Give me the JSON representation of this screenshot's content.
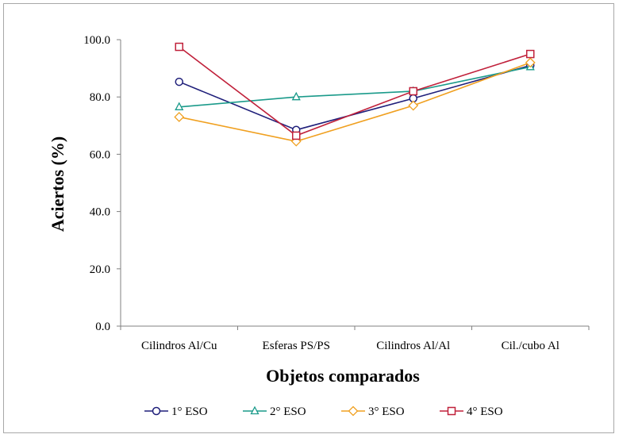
{
  "chart_data": {
    "type": "line",
    "title": "",
    "xlabel": "Objetos comparados",
    "ylabel": "Aciertos (%)",
    "categories": [
      "Cilindros Al/Cu",
      "Esferas PS/PS",
      "Cilindros Al/Al",
      "Cil./cubo Al"
    ],
    "ylim": [
      0,
      100
    ],
    "yticks": [
      "0.0",
      "20.0",
      "40.0",
      "60.0",
      "80.0",
      "100.0"
    ],
    "grid": false,
    "legend_position": "bottom",
    "series": [
      {
        "name": "1° ESO",
        "color": "#1f1f7a",
        "marker": "circle",
        "values": [
          85.3,
          68.5,
          79.5,
          91.0
        ]
      },
      {
        "name": "2° ESO",
        "color": "#1a9a8a",
        "marker": "triangle",
        "values": [
          76.5,
          80.0,
          82.0,
          90.5
        ]
      },
      {
        "name": "3° ESO",
        "color": "#f0a020",
        "marker": "diamond",
        "values": [
          73.0,
          64.5,
          77.0,
          92.0
        ]
      },
      {
        "name": "4° ESO",
        "color": "#c0203a",
        "marker": "square",
        "values": [
          97.5,
          66.5,
          82.0,
          95.0
        ]
      }
    ]
  }
}
